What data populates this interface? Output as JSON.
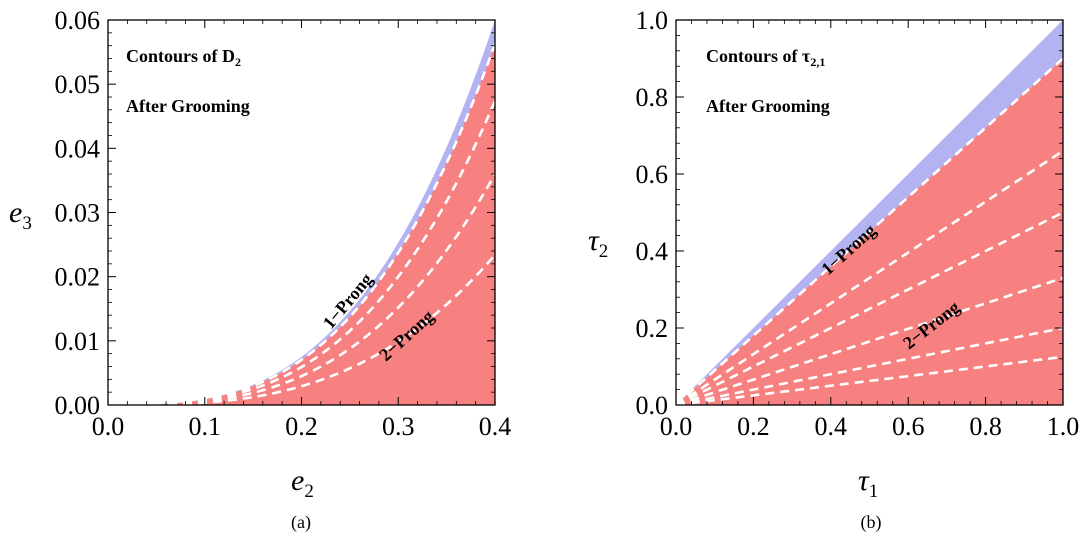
{
  "chart_data": [
    {
      "type": "area",
      "subfigure": "a",
      "caption": "(a)",
      "xlabel": {
        "base": "e",
        "sub": "2"
      },
      "ylabel": {
        "base": "e",
        "sub": "3"
      },
      "xlim": [
        0,
        0.4
      ],
      "ylim": [
        0,
        0.06
      ],
      "xticks": [
        "0.0",
        "0.1",
        "0.2",
        "0.3",
        "0.4"
      ],
      "yticks": [
        "0.00",
        "0.01",
        "0.02",
        "0.03",
        "0.04",
        "0.05",
        "0.06"
      ],
      "annotations": {
        "line1": {
          "text": "Contours of D",
          "sub": "2"
        },
        "line2": "After Grooming",
        "one_prong": "1−Prong",
        "two_prong": "2−Prong"
      },
      "regions": {
        "one_prong": {
          "label": "1-Prong",
          "color": "#b3b3f2",
          "lower_coeff": 0.938,
          "upper_coeff": 1.0,
          "power": 3
        },
        "two_prong": {
          "label": "2-Prong",
          "color": "#f78080",
          "lower_coeff": 0.0,
          "upper_coeff": 0.938,
          "power": 3
        }
      },
      "contours": {
        "color": "#ffffff",
        "style": "dashed",
        "power": 3,
        "coefficients": [
          0.938,
          0.79,
          0.6,
          0.39
        ]
      }
    },
    {
      "type": "area",
      "subfigure": "b",
      "caption": "(b)",
      "xlabel": {
        "base": "τ",
        "sub": "1"
      },
      "ylabel": {
        "base": "τ",
        "sub": "2"
      },
      "xlim": [
        0,
        1.0
      ],
      "ylim": [
        0,
        1.0
      ],
      "xticks": [
        "0.0",
        "0.2",
        "0.4",
        "0.6",
        "0.8",
        "1.0"
      ],
      "yticks": [
        "0.0",
        "0.2",
        "0.4",
        "0.6",
        "0.8",
        "1.0"
      ],
      "annotations": {
        "line1": {
          "text": "Contours of τ",
          "sub": "2,1"
        },
        "line2": "After Grooming",
        "one_prong": "1−Prong",
        "two_prong": "2−Prong"
      },
      "regions": {
        "one_prong": {
          "label": "1-Prong",
          "color": "#b3b3f2",
          "lower_slope": 0.9,
          "upper_slope": 1.0
        },
        "two_prong": {
          "label": "2-Prong",
          "color": "#f78080",
          "lower_slope": 0.0,
          "upper_slope": 0.9
        }
      },
      "contours": {
        "color": "#ffffff",
        "style": "dashed",
        "slopes": [
          0.9,
          0.66,
          0.5,
          0.33,
          0.2,
          0.125
        ]
      }
    }
  ]
}
